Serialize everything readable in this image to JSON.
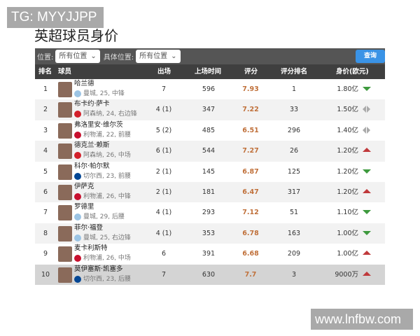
{
  "watermarks": {
    "top": "TG: MYYJJPP",
    "bottom": "www.lnfbw.com"
  },
  "title": "英超球员身价",
  "filters": {
    "position_label": "位置:",
    "position_value": "所有位置",
    "specific_label": "具体位置:",
    "specific_value": "所有位置",
    "query_button": "查询"
  },
  "columns": [
    "排名",
    "球员",
    "出场",
    "上场时间",
    "评分",
    "评分排名",
    "身价(欧元)"
  ],
  "colors": {
    "up": "#c0393b",
    "down": "#3e9a3e",
    "same": "#aaaaaa",
    "rating": "#c0703a",
    "query": "#3a93e6"
  },
  "club_colors": {
    "曼城": "#9cc4e4",
    "阿森纳": "#d3202a",
    "利物浦": "#c8102e",
    "切尔西": "#034694"
  },
  "rows": [
    {
      "rank": "1",
      "name": "哈兰德",
      "club": "曼城",
      "info": "曼城, 25, 中锋",
      "apps": "7",
      "minutes": "596",
      "rating": "7.93",
      "rating_rank": "1",
      "value": "1.80亿",
      "trend": "down"
    },
    {
      "rank": "2",
      "name": "布卡约·萨卡",
      "club": "阿森纳",
      "info": "阿森纳, 24, 右边锋",
      "apps": "4 (1)",
      "minutes": "347",
      "rating": "7.22",
      "rating_rank": "33",
      "value": "1.50亿",
      "trend": "same"
    },
    {
      "rank": "3",
      "name": "弗洛里安·维尔茨",
      "club": "利物浦",
      "info": "利物浦, 22, 前腰",
      "apps": "5 (2)",
      "minutes": "485",
      "rating": "6.51",
      "rating_rank": "296",
      "value": "1.40亿",
      "trend": "same"
    },
    {
      "rank": "4",
      "name": "德克兰·赖斯",
      "club": "阿森纳",
      "info": "阿森纳, 26, 中场",
      "apps": "6 (1)",
      "minutes": "544",
      "rating": "7.27",
      "rating_rank": "26",
      "value": "1.20亿",
      "trend": "up"
    },
    {
      "rank": "5",
      "name": "科尔·帕尔默",
      "club": "切尔西",
      "info": "切尔西, 23, 前腰",
      "apps": "2 (1)",
      "minutes": "145",
      "rating": "6.87",
      "rating_rank": "125",
      "value": "1.20亿",
      "trend": "down"
    },
    {
      "rank": "6",
      "name": "伊萨克",
      "club": "利物浦",
      "info": "利物浦, 26, 中锋",
      "apps": "2 (1)",
      "minutes": "181",
      "rating": "6.47",
      "rating_rank": "317",
      "value": "1.20亿",
      "trend": "up"
    },
    {
      "rank": "7",
      "name": "罗德里",
      "club": "曼城",
      "info": "曼城, 29, 后腰",
      "apps": "4 (1)",
      "minutes": "293",
      "rating": "7.12",
      "rating_rank": "51",
      "value": "1.10亿",
      "trend": "down"
    },
    {
      "rank": "8",
      "name": "菲尔·福登",
      "club": "曼城",
      "info": "曼城, 25, 右边锋",
      "apps": "4 (1)",
      "minutes": "353",
      "rating": "6.78",
      "rating_rank": "163",
      "value": "1.00亿",
      "trend": "down"
    },
    {
      "rank": "9",
      "name": "麦卡利斯特",
      "club": "利物浦",
      "info": "利物浦, 26, 中场",
      "apps": "6",
      "minutes": "391",
      "rating": "6.68",
      "rating_rank": "209",
      "value": "1.00亿",
      "trend": "up"
    },
    {
      "rank": "10",
      "name": "莫伊塞斯·凯塞多",
      "club": "切尔西",
      "info": "切尔西, 23, 后腰",
      "apps": "7",
      "minutes": "630",
      "rating": "7.7",
      "rating_rank": "3",
      "value": "9000万",
      "trend": "up"
    }
  ]
}
